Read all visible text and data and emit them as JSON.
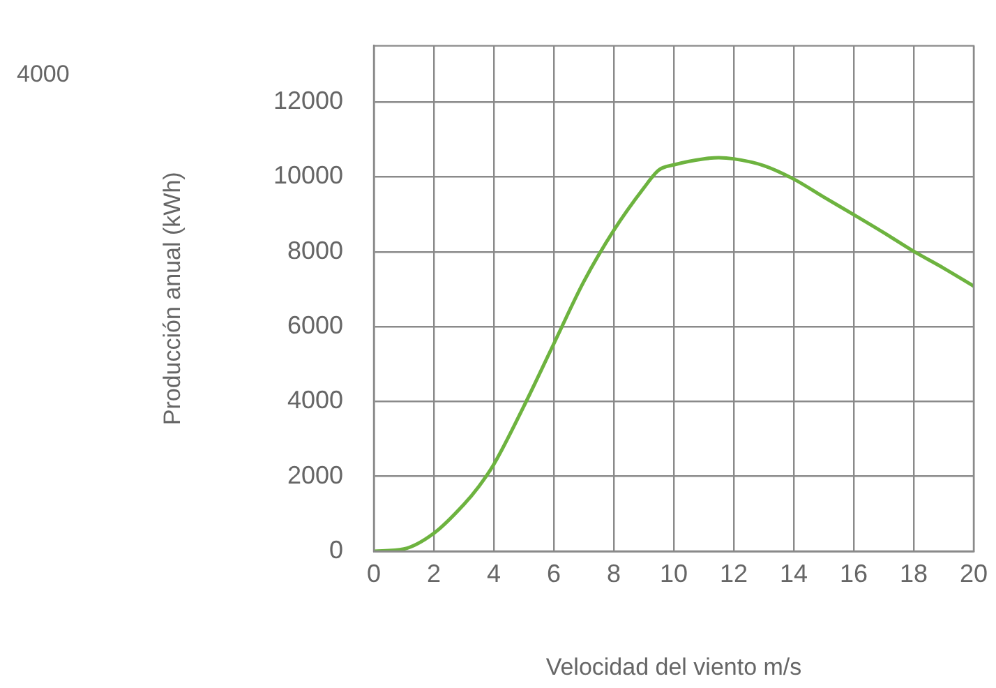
{
  "chart_data": {
    "type": "line",
    "xlabel": "Velocidad del viento m/s",
    "ylabel": "Producción anual (kWh)",
    "annotations": [
      "4000"
    ],
    "x": [
      0,
      1,
      2,
      3,
      3.5,
      4,
      5,
      6,
      7,
      8,
      9,
      9.5,
      10,
      11,
      11.5,
      12,
      13,
      14,
      15,
      16,
      17,
      18,
      19,
      20
    ],
    "series": [
      {
        "color": "#6db33f",
        "values": [
          0,
          60,
          480,
          1250,
          1730,
          2320,
          3870,
          5540,
          7200,
          8570,
          9700,
          10180,
          10320,
          10480,
          10510,
          10480,
          10300,
          9940,
          9460,
          8990,
          8510,
          8010,
          7560,
          7080
        ]
      }
    ],
    "xlim": [
      0,
      20
    ],
    "xticks": [
      0,
      2,
      4,
      6,
      8,
      10,
      12,
      14,
      16,
      18,
      20
    ],
    "ylim": [
      0,
      13500
    ],
    "yticks": [
      0,
      2000,
      4000,
      6000,
      8000,
      10000,
      12000
    ],
    "grid": true,
    "legend": false,
    "marker": "none",
    "line_style": "solid"
  }
}
